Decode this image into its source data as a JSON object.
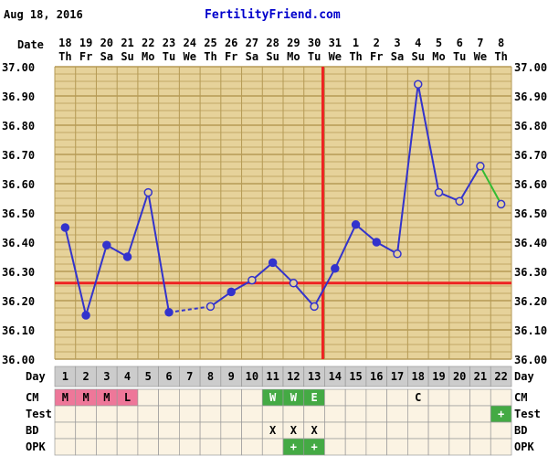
{
  "header": {
    "date": "Aug 18, 2016",
    "site": "FertilityFriend.com"
  },
  "row_labels": {
    "date": "Date",
    "day": "Day",
    "cm": "CM",
    "test": "Test",
    "bd": "BD",
    "opk": "OPK"
  },
  "colors": {
    "background": "#ffffff",
    "grid_fill": "#e6d29a",
    "grid_line": "#b59a55",
    "temp_line": "#3333cc",
    "coverline": "#ee2222",
    "green_segment": "#33bb33",
    "cm_menses": "#ee7799",
    "cm_fertile": "#44aa44",
    "plus_cell": "#44aa44",
    "day_row": "#cccccc",
    "lower_rows": "#fbf3e3"
  },
  "chart_data": {
    "type": "line",
    "title": "",
    "xlabel": "Day",
    "ylabel": "",
    "ylim": [
      36.0,
      37.0
    ],
    "yticks": [
      "36.00",
      "36.10",
      "36.20",
      "36.30",
      "36.40",
      "36.50",
      "36.60",
      "36.70",
      "36.80",
      "36.90",
      "37.00"
    ],
    "dates": [
      "18",
      "19",
      "20",
      "21",
      "22",
      "23",
      "24",
      "25",
      "26",
      "27",
      "28",
      "29",
      "30",
      "31",
      "1",
      "2",
      "3",
      "4",
      "5",
      "6",
      "7",
      "8"
    ],
    "weekdays": [
      "Th",
      "Fr",
      "Sa",
      "Su",
      "Mo",
      "Tu",
      "We",
      "Th",
      "Fr",
      "Sa",
      "Su",
      "Mo",
      "Tu",
      "We",
      "Th",
      "Fr",
      "Sa",
      "Su",
      "Mo",
      "Tu",
      "We",
      "Th"
    ],
    "days": [
      "1",
      "2",
      "3",
      "4",
      "5",
      "6",
      "7",
      "8",
      "9",
      "10",
      "11",
      "12",
      "13",
      "14",
      "15",
      "16",
      "17",
      "18",
      "19",
      "20",
      "21",
      "22"
    ],
    "temperatures": [
      36.45,
      36.15,
      36.39,
      36.35,
      36.57,
      36.16,
      null,
      36.18,
      36.23,
      36.27,
      36.33,
      36.26,
      36.18,
      36.31,
      36.46,
      36.4,
      36.36,
      36.94,
      36.57,
      36.54,
      36.66,
      36.53
    ],
    "open_markers": [
      5,
      8,
      10,
      12,
      13,
      17,
      18,
      19,
      20,
      21,
      22
    ],
    "coverline": 36.26,
    "ovulation_day": 13,
    "dashed_gap": [
      6,
      8
    ],
    "green_segment": [
      21,
      22
    ],
    "cm": [
      "M",
      "M",
      "M",
      "L",
      "",
      "",
      "",
      "",
      "",
      "",
      "W",
      "W",
      "E",
      "",
      "",
      "",
      "",
      "C",
      "",
      "",
      "",
      ""
    ],
    "test": [
      "",
      "",
      "",
      "",
      "",
      "",
      "",
      "",
      "",
      "",
      "",
      "",
      "",
      "",
      "",
      "",
      "",
      "",
      "",
      "",
      "",
      "+"
    ],
    "bd": [
      "",
      "",
      "",
      "",
      "",
      "",
      "",
      "",
      "",
      "",
      "X",
      "X",
      "X",
      "",
      "",
      "",
      "",
      "",
      "",
      "",
      "",
      ""
    ],
    "opk": [
      "",
      "",
      "",
      "",
      "",
      "",
      "",
      "",
      "",
      "",
      "",
      "+",
      "+",
      "",
      "",
      "",
      "",
      "",
      "",
      "",
      "",
      ""
    ]
  }
}
